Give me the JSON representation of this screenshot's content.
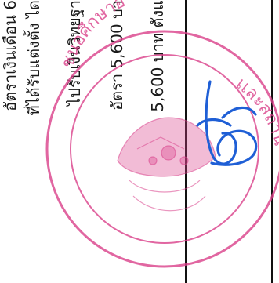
{
  "document": {
    "lines": [
      "อัตราเงินเดือน 6",
      "ที่ได้รับแต่งตั้ง ได",
      "ไปรับเงินวิทยฐา",
      "อัตรา 5,600 บา",
      "5,600 บาท ตังแ"
    ],
    "stamp": {
      "text_top": "ชนอศึกษาอ",
      "text_right": "เเละสถาน"
    },
    "signature": "handwritten signature",
    "colors": {
      "stamp": "#d9408a",
      "signature": "#1f5fd6",
      "ink": "#1a1a1a"
    }
  }
}
